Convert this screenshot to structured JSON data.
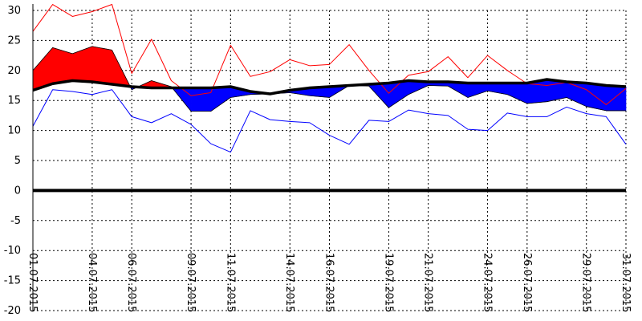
{
  "chart_data": {
    "type": "area",
    "title": "",
    "xlabel": "",
    "ylabel": "",
    "ylim": [
      -20,
      30
    ],
    "yticks": [
      30,
      25,
      20,
      15,
      10,
      5,
      0,
      -5,
      -10,
      -15,
      -20
    ],
    "grid": true,
    "x": [
      "01.07.2015",
      "02.07.2015",
      "03.07.2015",
      "04.07.2015",
      "05.07.2015",
      "06.07.2015",
      "07.07.2015",
      "08.07.2015",
      "09.07.2015",
      "10.07.2015",
      "11.07.2015",
      "12.07.2015",
      "13.07.2015",
      "14.07.2015",
      "15.07.2015",
      "16.07.2015",
      "17.07.2015",
      "18.07.2015",
      "19.07.2015",
      "20.07.2015",
      "21.07.2015",
      "22.07.2015",
      "23.07.2015",
      "24.07.2015",
      "25.07.2015",
      "26.07.2015",
      "27.07.2015",
      "28.07.2015",
      "29.07.2015",
      "30.07.2015",
      "31.07.2015"
    ],
    "x_tick_labels": [
      "01.07.2015",
      "04.07.2015",
      "06.07.2015",
      "09.07.2015",
      "11.07.2015",
      "14.07.2015",
      "16.07.2015",
      "19.07.2015",
      "21.07.2015",
      "24.07.2015",
      "26.07.2015",
      "29.07.2015",
      "31.07.2015"
    ],
    "series": [
      {
        "values": [
          16.7,
          17.8,
          18.3,
          18.1,
          17.7,
          17.3,
          17.1,
          17.1,
          17.1,
          17.1,
          17.3,
          16.5,
          16.1,
          16.7,
          17.1,
          17.3,
          17.5,
          17.7,
          17.9,
          18.3,
          18.1,
          18.1,
          17.9,
          17.9,
          17.9,
          17.9,
          18.5,
          18.1,
          17.9,
          17.5,
          17.3
        ],
        "color": "#000000"
      },
      {
        "values": [
          20.0,
          23.8,
          22.8,
          24.0,
          23.4,
          16.8,
          18.3,
          17.3,
          13.2,
          13.2,
          15.5,
          16.0,
          16.1,
          16.3,
          15.8,
          15.5,
          17.5,
          17.4,
          13.8,
          16.0,
          17.5,
          17.4,
          15.5,
          16.6,
          16.0,
          14.5,
          14.8,
          15.5,
          14.0,
          13.3,
          13.3
        ],
        "color": "#ff0000",
        "below_color": "#0000ff"
      },
      {
        "values": [
          26.5,
          31.0,
          29.0,
          29.8,
          31.0,
          19.5,
          25.2,
          18.3,
          15.8,
          16.3,
          24.2,
          19.0,
          19.8,
          21.8,
          20.8,
          21.0,
          24.3,
          20.0,
          16.2,
          19.2,
          19.8,
          22.3,
          18.8,
          22.5,
          20.0,
          17.8,
          17.5,
          18.0,
          16.8,
          14.3,
          17.0
        ],
        "color": "#ff0000"
      },
      {
        "values": [
          10.7,
          16.8,
          16.5,
          16.0,
          16.8,
          12.3,
          11.3,
          12.8,
          11.0,
          7.8,
          6.4,
          13.3,
          11.8,
          11.5,
          11.3,
          9.2,
          7.7,
          11.7,
          11.5,
          13.4,
          12.8,
          12.5,
          10.2,
          10.0,
          12.9,
          12.3,
          12.3,
          13.9,
          12.8,
          12.3,
          7.7
        ],
        "color": "#0000ff"
      }
    ]
  }
}
